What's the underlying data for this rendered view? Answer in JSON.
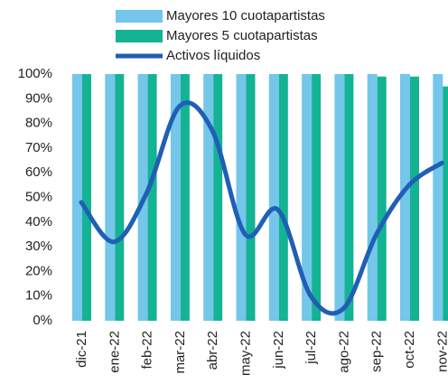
{
  "chart_data": {
    "type": "bar_line",
    "categories": [
      "dic-21",
      "ene-22",
      "feb-22",
      "mar-22",
      "abr-22",
      "may-22",
      "jun-22",
      "jul-22",
      "ago-22",
      "sep-22",
      "oct-22",
      "nov-22"
    ],
    "series": [
      {
        "name": "Mayores 10 cuotapartistas",
        "type": "bar",
        "color": "#74c6ea",
        "values": [
          100,
          100,
          100,
          100,
          100,
          100,
          100,
          100,
          100,
          100,
          100,
          100
        ]
      },
      {
        "name": "Mayores 5 cuotapartistas",
        "type": "bar",
        "color": "#14b394",
        "values": [
          100,
          100,
          100,
          100,
          100,
          100,
          100,
          100,
          100,
          99,
          99,
          95
        ]
      },
      {
        "name": "Activos líquidos",
        "type": "line",
        "color": "#1f5fb5",
        "values": [
          48,
          32,
          52,
          87,
          77,
          35,
          45,
          10,
          5,
          35,
          55,
          64
        ]
      }
    ],
    "ylim": [
      0,
      100
    ],
    "yticks": [
      {
        "value": 0,
        "label": "0%"
      },
      {
        "value": 10,
        "label": "10%"
      },
      {
        "value": 20,
        "label": "20%"
      },
      {
        "value": 30,
        "label": "30%"
      },
      {
        "value": 40,
        "label": "40%"
      },
      {
        "value": 50,
        "label": "50%"
      },
      {
        "value": 60,
        "label": "60%"
      },
      {
        "value": 70,
        "label": "70%"
      },
      {
        "value": 80,
        "label": "80%"
      },
      {
        "value": 90,
        "label": "90%"
      },
      {
        "value": 100,
        "label": "100%"
      }
    ],
    "legend": "top"
  }
}
